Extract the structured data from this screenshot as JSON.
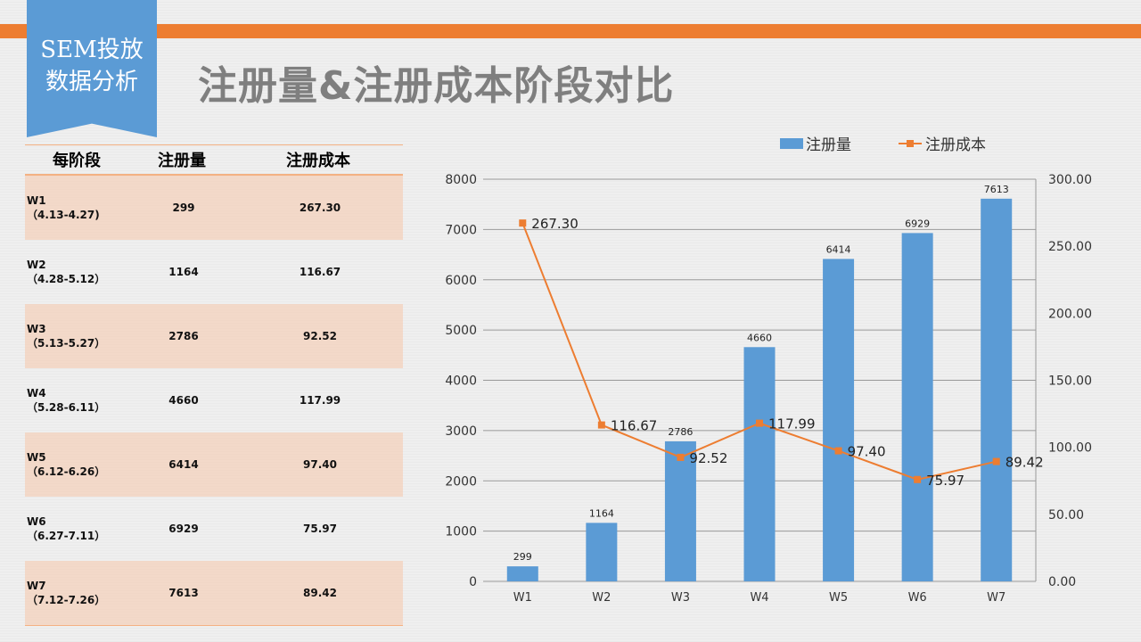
{
  "header": {
    "badge_line1": "SEM投放",
    "badge_line2": "数据分析",
    "title": "注册量&注册成本阶段对比"
  },
  "table": {
    "headers": [
      "每阶段",
      "注册量",
      "注册成本"
    ],
    "rows": [
      {
        "week": "W1",
        "range": "（4.13-4.27)",
        "reg": "299",
        "cost": "267.30"
      },
      {
        "week": "W2",
        "range": "（4.28-5.12）",
        "reg": "1164",
        "cost": "116.67"
      },
      {
        "week": "W3",
        "range": "（5.13-5.27）",
        "reg": "2786",
        "cost": "92.52"
      },
      {
        "week": "W4",
        "range": "（5.28-6.11）",
        "reg": "4660",
        "cost": "117.99"
      },
      {
        "week": "W5",
        "range": "（6.12-6.26）",
        "reg": "6414",
        "cost": "97.40"
      },
      {
        "week": "W6",
        "range": "（6.27-7.11）",
        "reg": "6929",
        "cost": "75.97"
      },
      {
        "week": "W7",
        "range": "（7.12-7.26）",
        "reg": "7613",
        "cost": "89.42"
      }
    ]
  },
  "chart_data": {
    "type": "bar",
    "categories": [
      "W1",
      "W2",
      "W3",
      "W4",
      "W5",
      "W6",
      "W7"
    ],
    "series": [
      {
        "name": "注册量",
        "type": "bar",
        "axis": "left",
        "color": "#5b9bd5",
        "values": [
          299,
          1164,
          2786,
          4660,
          6414,
          6929,
          7613
        ]
      },
      {
        "name": "注册成本",
        "type": "line",
        "axis": "right",
        "color": "#ed7d31",
        "values": [
          267.3,
          116.67,
          92.52,
          117.99,
          97.4,
          75.97,
          89.42
        ]
      }
    ],
    "ylim": [
      0,
      8000
    ],
    "yticks": [
      "0",
      "1000",
      "2000",
      "3000",
      "4000",
      "5000",
      "6000",
      "7000",
      "8000"
    ],
    "y2lim": [
      0,
      300
    ],
    "y2ticks": [
      "0.00",
      "50.00",
      "100.00",
      "150.00",
      "200.00",
      "250.00",
      "300.00"
    ],
    "legend": "top",
    "grid": true
  }
}
